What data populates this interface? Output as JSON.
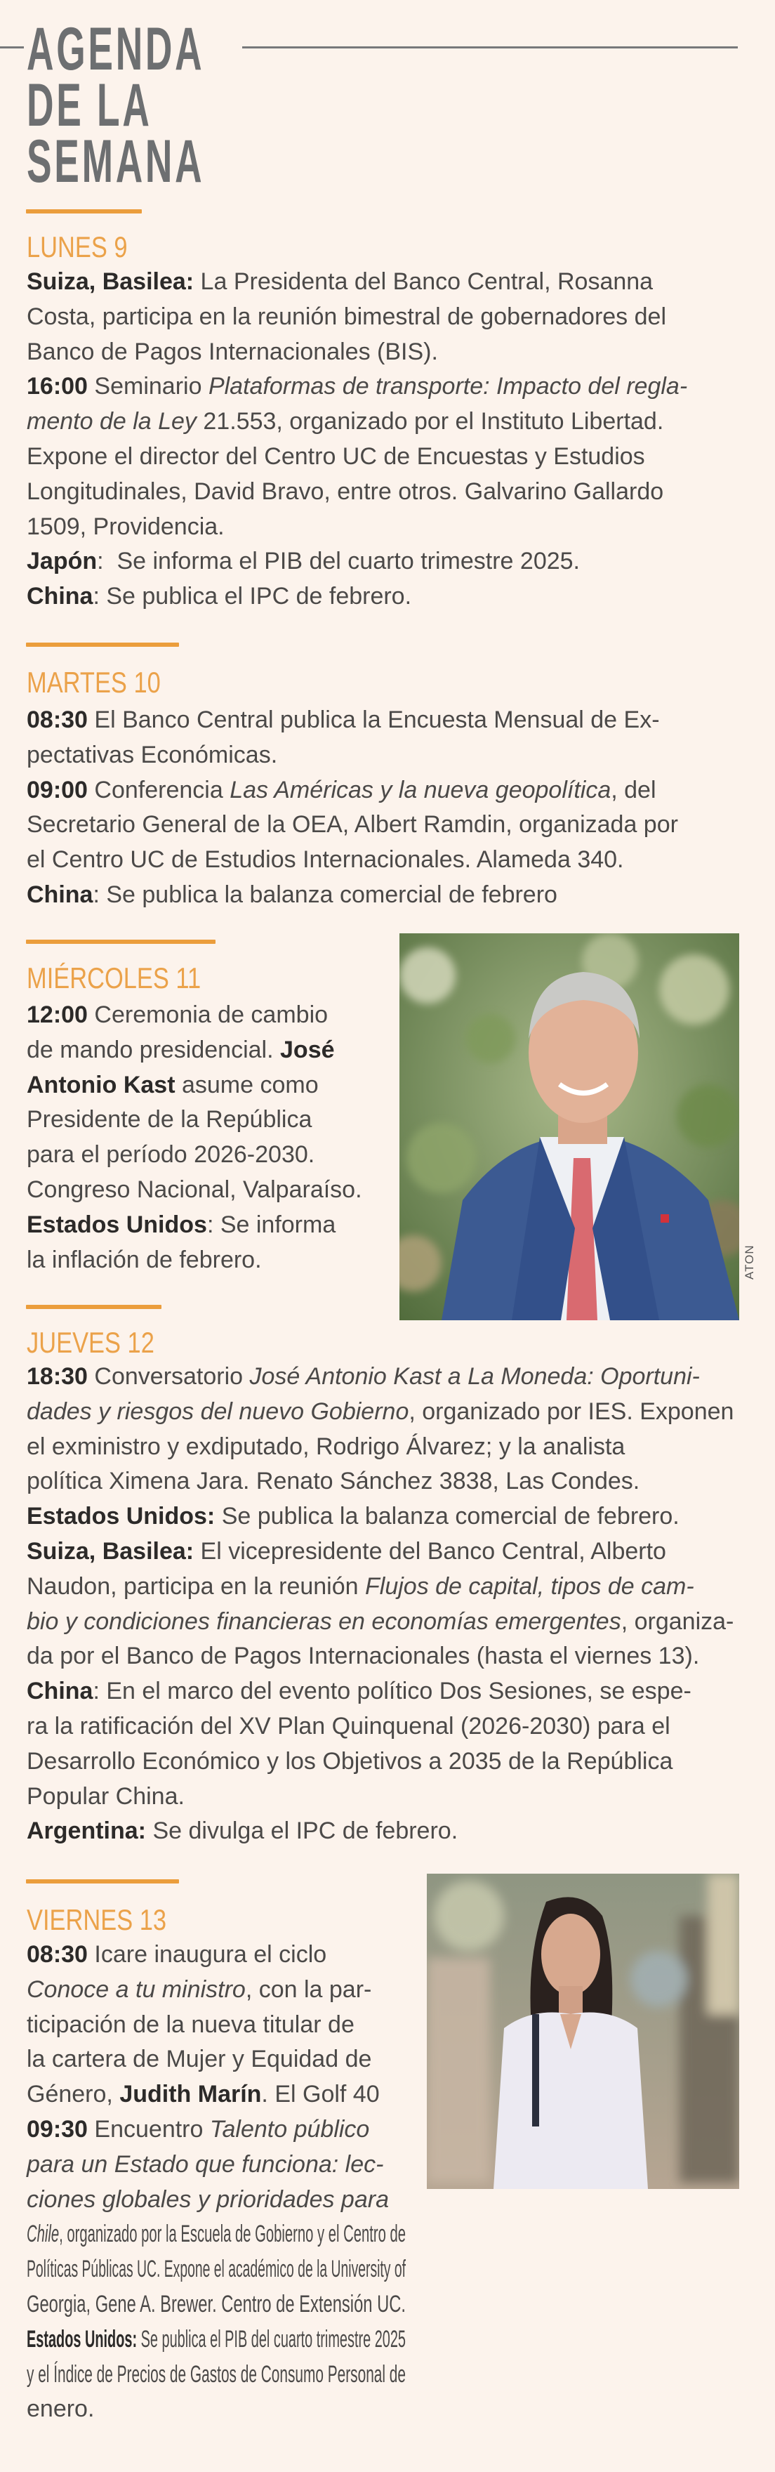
{
  "header": {
    "title_lines": [
      "AGENDA",
      "DE LA",
      "SEMANA"
    ]
  },
  "colors": {
    "accent": "#eb9d3c",
    "day_label": "#eba24a",
    "title": "#6d6f71",
    "background": "#fcf3ec",
    "text": "#4b4948"
  },
  "days": [
    {
      "label": "LUNES 9",
      "lines": [
        [
          {
            "t": "Suiza, Basilea:",
            "s": "b"
          },
          {
            "t": " La Presidenta del Banco Central, Rosanna",
            "s": "n"
          }
        ],
        [
          {
            "t": "Costa, participa en la reunión bimestral de gobernadores del",
            "s": "n"
          }
        ],
        [
          {
            "t": "Banco de Pagos Internacionales (BIS).",
            "s": "n"
          }
        ],
        [
          {
            "t": "16:00",
            "s": "b"
          },
          {
            "t": " Seminario ",
            "s": "n"
          },
          {
            "t": "Plataformas de transporte: Impacto del regla-",
            "s": "i"
          }
        ],
        [
          {
            "t": "mento de la Ley ",
            "s": "i"
          },
          {
            "t": "21.553, organizado por el Instituto Libertad.",
            "s": "n"
          }
        ],
        [
          {
            "t": "Expone el director del Centro UC de Encuestas y Estudios",
            "s": "n"
          }
        ],
        [
          {
            "t": "Longitudinales, David Bravo, entre otros. Galvarino Gallardo",
            "s": "n"
          }
        ],
        [
          {
            "t": "1509, Providencia.",
            "s": "n"
          }
        ],
        [
          {
            "t": "Japón",
            "s": "b"
          },
          {
            "t": ":  Se informa el PIB del cuarto trimestre 2025.",
            "s": "n"
          }
        ],
        [
          {
            "t": "China",
            "s": "b"
          },
          {
            "t": ": Se publica el IPC de febrero.",
            "s": "n"
          }
        ]
      ]
    },
    {
      "label": "MARTES 10",
      "lines": [
        [
          {
            "t": "08:30",
            "s": "b"
          },
          {
            "t": " El Banco Central publica la Encuesta Mensual de Ex-",
            "s": "n"
          }
        ],
        [
          {
            "t": "pectativas Económicas.",
            "s": "n"
          }
        ],
        [
          {
            "t": "09:00",
            "s": "b"
          },
          {
            "t": " Conferencia ",
            "s": "n"
          },
          {
            "t": "Las Américas y la nueva geopolítica",
            "s": "i"
          },
          {
            "t": ", del",
            "s": "n"
          }
        ],
        [
          {
            "t": "Secretario General de la OEA, Albert Ramdin, organizada por",
            "s": "n"
          }
        ],
        [
          {
            "t": "el Centro UC de Estudios Internacionales. Alameda 340.",
            "s": "n"
          }
        ],
        [
          {
            "t": "China",
            "s": "b"
          },
          {
            "t": ": Se publica la balanza comercial de febrero",
            "s": "n"
          }
        ]
      ]
    },
    {
      "label": "MIÉRCOLES 11",
      "photo_credit": "ATON",
      "photo": "man-in-blue-suit",
      "lines": [
        [
          {
            "t": "12:00",
            "s": "b"
          },
          {
            "t": " Ceremonia de cambio",
            "s": "n"
          }
        ],
        [
          {
            "t": "de mando presidencial. ",
            "s": "n"
          },
          {
            "t": "José",
            "s": "b"
          }
        ],
        [
          {
            "t": "Antonio Kast",
            "s": "b"
          },
          {
            "t": " asume como",
            "s": "n"
          }
        ],
        [
          {
            "t": "Presidente de la República",
            "s": "n"
          }
        ],
        [
          {
            "t": "para el período 2026-2030.",
            "s": "n"
          }
        ],
        [
          {
            "t": "Congreso Nacional, Valparaíso.",
            "s": "n"
          }
        ],
        [
          {
            "t": "Estados Unidos",
            "s": "b"
          },
          {
            "t": ": Se informa",
            "s": "n"
          }
        ],
        [
          {
            "t": "la inflación de febrero.",
            "s": "n"
          }
        ]
      ]
    },
    {
      "label": "JUEVES 12",
      "lines": [
        [
          {
            "t": "18:30",
            "s": "b"
          },
          {
            "t": " Conversatorio ",
            "s": "n"
          },
          {
            "t": "José Antonio Kast a La Moneda: Oportuni-",
            "s": "i"
          }
        ],
        [
          {
            "t": "dades y riesgos del nuevo Gobierno",
            "s": "i"
          },
          {
            "t": ", organizado por IES. Exponen",
            "s": "n"
          }
        ],
        [
          {
            "t": "el exministro y exdiputado, Rodrigo Álvarez; y la analista",
            "s": "n"
          }
        ],
        [
          {
            "t": "política Ximena Jara. Renato Sánchez 3838, Las Condes.",
            "s": "n"
          }
        ],
        [
          {
            "t": "Estados Unidos:",
            "s": "b"
          },
          {
            "t": " Se publica la balanza comercial de febrero.",
            "s": "n"
          }
        ],
        [
          {
            "t": "Suiza, Basilea:",
            "s": "b"
          },
          {
            "t": " El vicepresidente del Banco Central, Alberto",
            "s": "n"
          }
        ],
        [
          {
            "t": "Naudon, participa en la reunión ",
            "s": "n"
          },
          {
            "t": "Flujos de capital, tipos de cam-",
            "s": "i"
          }
        ],
        [
          {
            "t": "bio y condiciones financieras en economías emergentes",
            "s": "i"
          },
          {
            "t": ", organiza-",
            "s": "n"
          }
        ],
        [
          {
            "t": "da por el Banco de Pagos Internacionales (hasta el viernes 13).",
            "s": "n"
          }
        ],
        [
          {
            "t": "China",
            "s": "b"
          },
          {
            "t": ": En el marco del evento político Dos Sesiones, se espe-",
            "s": "n"
          }
        ],
        [
          {
            "t": "ra la ratificación del XV Plan Quinquenal (2026-2030) para el",
            "s": "n"
          }
        ],
        [
          {
            "t": "Desarrollo Económico y los Objetivos a 2035 de la República",
            "s": "n"
          }
        ],
        [
          {
            "t": "Popular China.",
            "s": "n"
          }
        ],
        [
          {
            "t": "Argentina:",
            "s": "b"
          },
          {
            "t": " Se divulga el IPC de febrero.",
            "s": "n"
          }
        ]
      ]
    },
    {
      "label": "VIERNES 13",
      "photo": "woman-in-white-blouse",
      "lines": [
        [
          {
            "t": "08:30",
            "s": "b"
          },
          {
            "t": " Icare inaugura el ciclo",
            "s": "n"
          }
        ],
        [
          {
            "t": "Conoce a tu ministro",
            "s": "i"
          },
          {
            "t": ", con la par-",
            "s": "n"
          }
        ],
        [
          {
            "t": "ticipación de la nueva titular de",
            "s": "n"
          }
        ],
        [
          {
            "t": "la cartera de Mujer y Equidad de",
            "s": "n"
          }
        ],
        [
          {
            "t": "Género, ",
            "s": "n"
          },
          {
            "t": "Judith Marín",
            "s": "b"
          },
          {
            "t": ". El Golf 40",
            "s": "n"
          }
        ],
        [
          {
            "t": "09:30",
            "s": "b"
          },
          {
            "t": " Encuentro ",
            "s": "n"
          },
          {
            "t": "Talento público",
            "s": "i"
          }
        ],
        [
          {
            "t": "para un Estado que funciona: lec-",
            "s": "i"
          }
        ],
        [
          {
            "t": "ciones globales y prioridades para",
            "s": "i"
          }
        ],
        [
          {
            "t": "Chile",
            "s": "i"
          },
          {
            "t": ", organizado por la Escuela de Gobierno y el Centro de",
            "s": "n"
          }
        ],
        [
          {
            "t": "Políticas Públicas UC. Expone el académico de la University of",
            "s": "n"
          }
        ],
        [
          {
            "t": "Georgia, Gene A. Brewer. Centro de Extensión UC.",
            "s": "n"
          }
        ],
        [
          {
            "t": "Estados Unidos:",
            "s": "b"
          },
          {
            "t": " Se publica el PIB del cuarto trimestre 2025",
            "s": "n"
          }
        ],
        [
          {
            "t": "y el Índice de Precios de Gastos de Consumo Personal de",
            "s": "n"
          }
        ],
        [
          {
            "t": "enero.",
            "s": "n"
          }
        ]
      ]
    }
  ]
}
